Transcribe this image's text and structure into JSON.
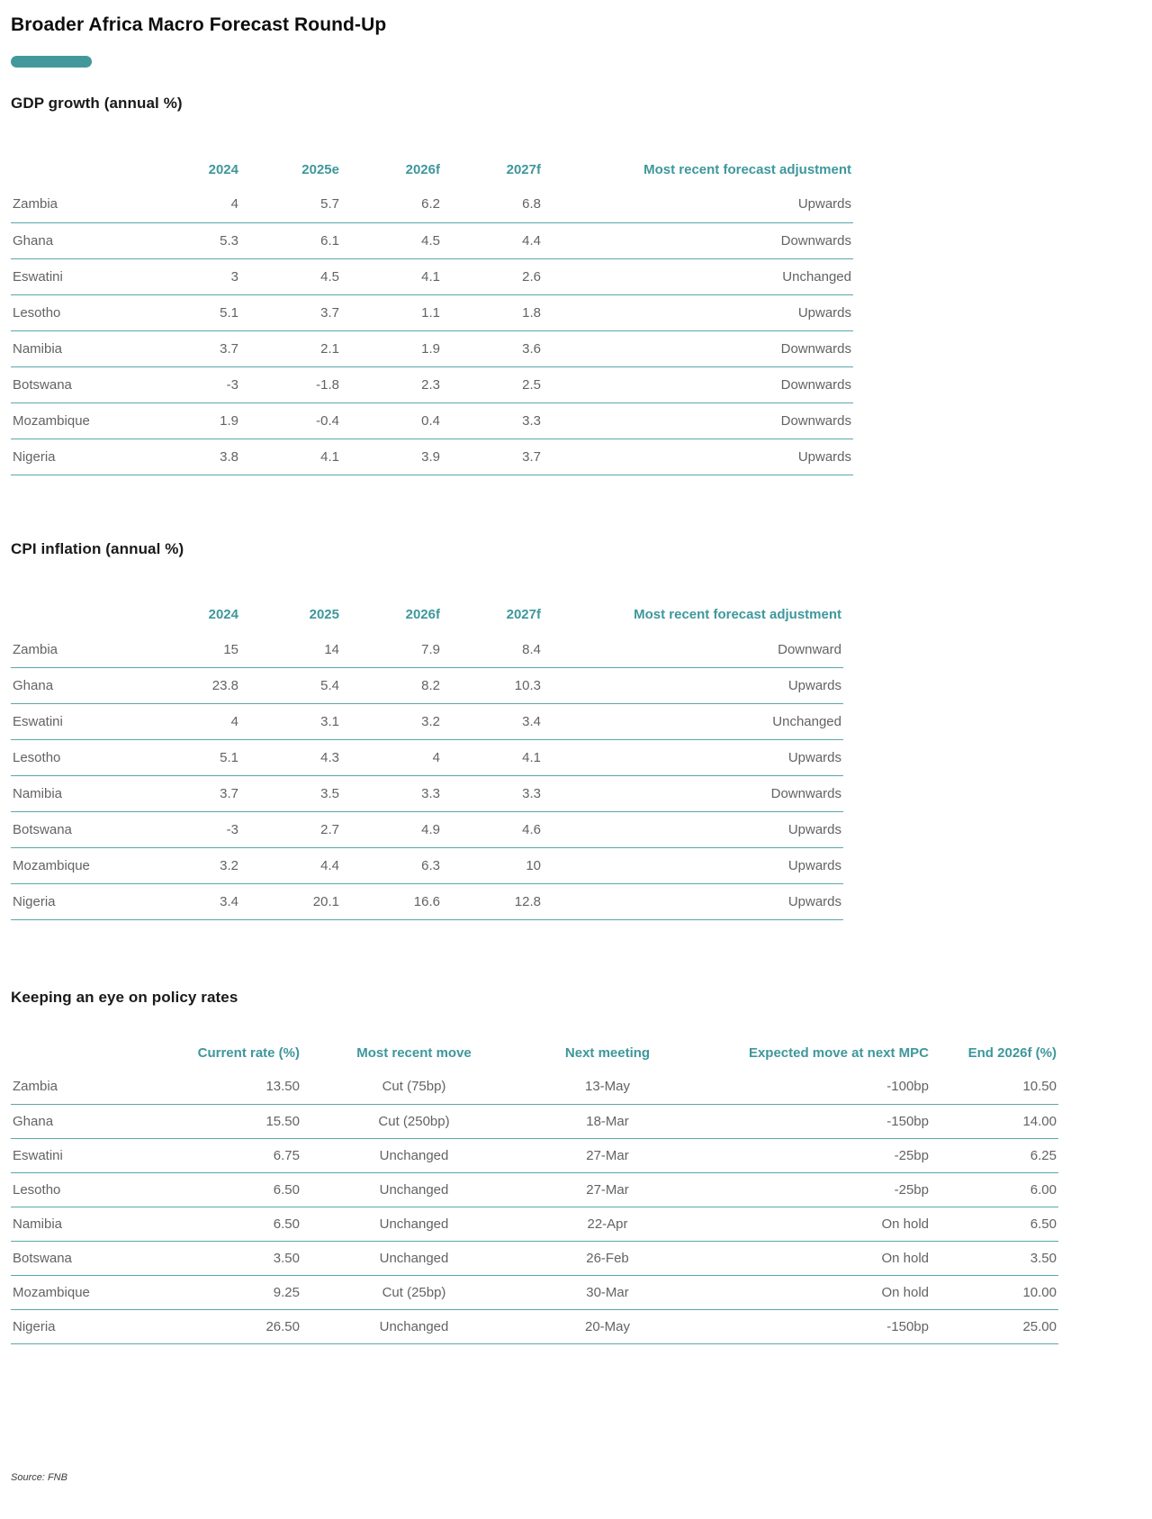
{
  "accent_color": "#43989C",
  "header_color": "#3E979C",
  "page": {
    "title": "Broader Africa Macro Forecast Round-Up",
    "source": "Source: FNB"
  },
  "tables": {
    "gdp": {
      "heading": "GDP growth (annual %)",
      "header": [
        "",
        "2024",
        "2025e",
        "2026f",
        "2027f",
        "Most recent forecast adjustment"
      ],
      "rows": [
        [
          "Zambia",
          "4",
          "5.7",
          "6.2",
          "6.8",
          "Upwards"
        ],
        [
          "Ghana",
          "5.3",
          "6.1",
          "4.5",
          "4.4",
          "Downwards"
        ],
        [
          "Eswatini",
          "3",
          "4.5",
          "4.1",
          "2.6",
          "Unchanged"
        ],
        [
          "Lesotho",
          "5.1",
          "3.7",
          "1.1",
          "1.8",
          "Upwards"
        ],
        [
          "Namibia",
          "3.7",
          "2.1",
          "1.9",
          "3.6",
          "Downwards"
        ],
        [
          "Botswana",
          "-3",
          "-1.8",
          "2.3",
          "2.5",
          "Downwards"
        ],
        [
          "Mozambique",
          "1.9",
          "-0.4",
          "0.4",
          "3.3",
          "Downwards"
        ],
        [
          "Nigeria",
          "3.8",
          "4.1",
          "3.9",
          "3.7",
          "Upwards"
        ]
      ]
    },
    "cpi": {
      "heading": "CPI inflation (annual %)",
      "header": [
        "",
        "2024",
        "2025",
        "2026f",
        "2027f",
        "Most recent forecast adjustment"
      ],
      "rows": [
        [
          "Zambia",
          "15",
          "14",
          "7.9",
          "8.4",
          "Downward"
        ],
        [
          "Ghana",
          "23.8",
          "5.4",
          "8.2",
          "10.3",
          "Upwards"
        ],
        [
          "Eswatini",
          "4",
          "3.1",
          "3.2",
          "3.4",
          "Unchanged"
        ],
        [
          "Lesotho",
          "5.1",
          "4.3",
          "4",
          "4.1",
          "Upwards"
        ],
        [
          "Namibia",
          "3.7",
          "3.5",
          "3.3",
          "3.3",
          "Downwards"
        ],
        [
          "Botswana",
          "-3",
          "2.7",
          "4.9",
          "4.6",
          "Upwards"
        ],
        [
          "Mozambique",
          "3.2",
          "4.4",
          "6.3",
          "10",
          "Upwards"
        ],
        [
          "Nigeria",
          "3.4",
          "20.1",
          "16.6",
          "12.8",
          "Upwards"
        ]
      ]
    },
    "policy": {
      "heading": "Keeping an eye on policy rates",
      "header": [
        "",
        "Current rate (%)",
        "Most recent move",
        "Next meeting",
        "Expected move at next MPC",
        "End 2026f (%)"
      ],
      "rows": [
        [
          "Zambia",
          "13.50",
          "Cut (75bp)",
          "13-May",
          "-100bp",
          "10.50"
        ],
        [
          "Ghana",
          "15.50",
          "Cut (250bp)",
          "18-Mar",
          "-150bp",
          "14.00"
        ],
        [
          "Eswatini",
          "6.75",
          "Unchanged",
          "27-Mar",
          "-25bp",
          "6.25"
        ],
        [
          "Lesotho",
          "6.50",
          "Unchanged",
          "27-Mar",
          "-25bp",
          "6.00"
        ],
        [
          "Namibia",
          "6.50",
          "Unchanged",
          "22-Apr",
          "On hold",
          "6.50"
        ],
        [
          "Botswana",
          "3.50",
          "Unchanged",
          "26-Feb",
          "On hold",
          "3.50"
        ],
        [
          "Mozambique",
          "9.25",
          "Cut (25bp)",
          "30-Mar",
          "On hold",
          "10.00"
        ],
        [
          "Nigeria",
          "26.50",
          "Unchanged",
          "20-May",
          "-150bp",
          "25.00"
        ]
      ]
    }
  }
}
